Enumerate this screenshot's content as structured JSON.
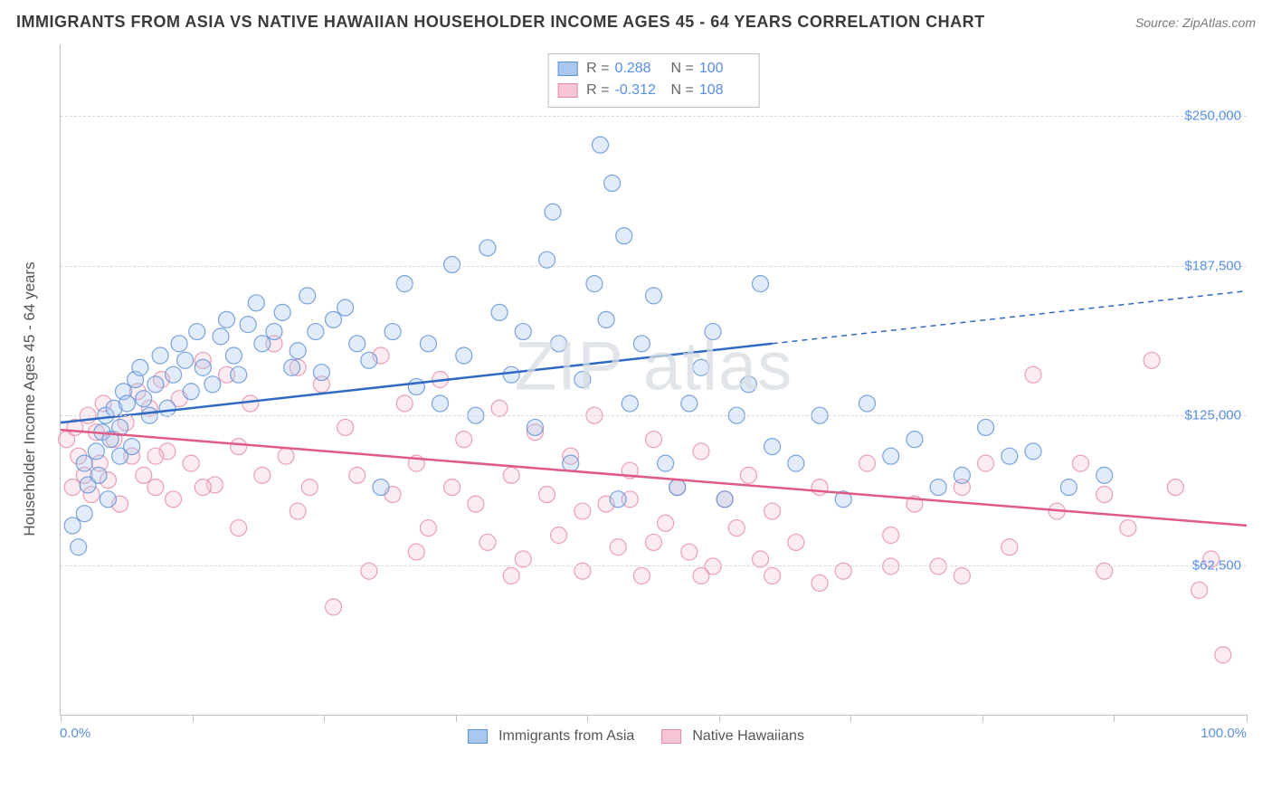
{
  "header": {
    "title": "IMMIGRANTS FROM ASIA VS NATIVE HAWAIIAN HOUSEHOLDER INCOME AGES 45 - 64 YEARS CORRELATION CHART",
    "source": "Source: ZipAtlas.com"
  },
  "watermark": "ZIP atlas",
  "chart": {
    "type": "scatter",
    "y_axis": {
      "title": "Householder Income Ages 45 - 64 years",
      "min": 0,
      "max": 280000,
      "ticks": [
        62500,
        125000,
        187500,
        250000
      ],
      "tick_labels": [
        "$62,500",
        "$125,000",
        "$187,500",
        "$250,000"
      ],
      "tick_color": "#5a8fe6",
      "grid_color": "#d9d9d9"
    },
    "x_axis": {
      "min": 0,
      "max": 100,
      "ticks": [
        0,
        11.1,
        22.2,
        33.3,
        44.4,
        55.5,
        66.6,
        77.7,
        88.8,
        100
      ],
      "label_left": "0.0%",
      "label_right": "100.0%",
      "label_color": "#5a8fe6"
    },
    "marker": {
      "radius": 9,
      "fill_opacity": 0.35,
      "stroke_opacity": 0.8,
      "stroke_width": 1.2
    },
    "series": [
      {
        "id": "asia",
        "label": "Immigrants from Asia",
        "color_fill": "#a9c7ef",
        "color_stroke": "#5b8fd6",
        "color_line": "#2f69c4",
        "R": "0.288",
        "N": "100",
        "trend": {
          "y_at_x0": 122000,
          "y_at_x100": 177000,
          "solid_until_x": 60
        },
        "points": [
          [
            1,
            79000
          ],
          [
            1.5,
            70000
          ],
          [
            2,
            84000
          ],
          [
            2,
            105000
          ],
          [
            2.3,
            96000
          ],
          [
            3,
            110000
          ],
          [
            3.2,
            100000
          ],
          [
            3.5,
            118000
          ],
          [
            3.8,
            125000
          ],
          [
            4,
            90000
          ],
          [
            4.2,
            115000
          ],
          [
            4.5,
            128000
          ],
          [
            5,
            120000
          ],
          [
            5,
            108000
          ],
          [
            5.3,
            135000
          ],
          [
            5.6,
            130000
          ],
          [
            6,
            112000
          ],
          [
            6.3,
            140000
          ],
          [
            6.7,
            145000
          ],
          [
            7,
            132000
          ],
          [
            7.5,
            125000
          ],
          [
            8,
            138000
          ],
          [
            8.4,
            150000
          ],
          [
            9,
            128000
          ],
          [
            9.5,
            142000
          ],
          [
            10,
            155000
          ],
          [
            10.5,
            148000
          ],
          [
            11,
            135000
          ],
          [
            11.5,
            160000
          ],
          [
            12,
            145000
          ],
          [
            12.8,
            138000
          ],
          [
            13.5,
            158000
          ],
          [
            14,
            165000
          ],
          [
            14.6,
            150000
          ],
          [
            15,
            142000
          ],
          [
            15.8,
            163000
          ],
          [
            16.5,
            172000
          ],
          [
            17,
            155000
          ],
          [
            18,
            160000
          ],
          [
            18.7,
            168000
          ],
          [
            19.5,
            145000
          ],
          [
            20,
            152000
          ],
          [
            20.8,
            175000
          ],
          [
            21.5,
            160000
          ],
          [
            22,
            143000
          ],
          [
            23,
            165000
          ],
          [
            24,
            170000
          ],
          [
            25,
            155000
          ],
          [
            26,
            148000
          ],
          [
            27,
            95000
          ],
          [
            28,
            160000
          ],
          [
            29,
            180000
          ],
          [
            30,
            137000
          ],
          [
            31,
            155000
          ],
          [
            32,
            130000
          ],
          [
            33,
            188000
          ],
          [
            34,
            150000
          ],
          [
            35,
            125000
          ],
          [
            36,
            195000
          ],
          [
            37,
            168000
          ],
          [
            38,
            142000
          ],
          [
            39,
            160000
          ],
          [
            40,
            120000
          ],
          [
            41,
            190000
          ],
          [
            41.5,
            210000
          ],
          [
            42,
            155000
          ],
          [
            43,
            105000
          ],
          [
            44,
            140000
          ],
          [
            45,
            180000
          ],
          [
            45.5,
            238000
          ],
          [
            46,
            165000
          ],
          [
            46.5,
            222000
          ],
          [
            47,
            90000
          ],
          [
            47.5,
            200000
          ],
          [
            48,
            130000
          ],
          [
            49,
            155000
          ],
          [
            50,
            175000
          ],
          [
            51,
            105000
          ],
          [
            52,
            95000
          ],
          [
            53,
            130000
          ],
          [
            54,
            145000
          ],
          [
            55,
            160000
          ],
          [
            56,
            90000
          ],
          [
            57,
            125000
          ],
          [
            58,
            138000
          ],
          [
            59,
            180000
          ],
          [
            60,
            112000
          ],
          [
            62,
            105000
          ],
          [
            64,
            125000
          ],
          [
            66,
            90000
          ],
          [
            68,
            130000
          ],
          [
            70,
            108000
          ],
          [
            72,
            115000
          ],
          [
            74,
            95000
          ],
          [
            76,
            100000
          ],
          [
            78,
            120000
          ],
          [
            80,
            108000
          ],
          [
            82,
            110000
          ],
          [
            85,
            95000
          ],
          [
            88,
            100000
          ]
        ]
      },
      {
        "id": "hawaiian",
        "label": "Native Hawaiians",
        "color_fill": "#f5c5d3",
        "color_stroke": "#e58aa5",
        "color_line": "#e05a85",
        "R": "-0.312",
        "N": "108",
        "trend": {
          "y_at_x0": 119000,
          "y_at_x100": 79000,
          "solid_until_x": 100
        },
        "points": [
          [
            0.5,
            115000
          ],
          [
            1,
            95000
          ],
          [
            1.2,
            120000
          ],
          [
            1.5,
            108000
          ],
          [
            2,
            100000
          ],
          [
            2.3,
            125000
          ],
          [
            2.6,
            92000
          ],
          [
            3,
            118000
          ],
          [
            3.3,
            105000
          ],
          [
            3.6,
            130000
          ],
          [
            4,
            98000
          ],
          [
            4.5,
            115000
          ],
          [
            5,
            88000
          ],
          [
            5.5,
            122000
          ],
          [
            6,
            108000
          ],
          [
            6.5,
            135000
          ],
          [
            7,
            100000
          ],
          [
            7.5,
            128000
          ],
          [
            8,
            95000
          ],
          [
            8.5,
            140000
          ],
          [
            9,
            110000
          ],
          [
            9.5,
            90000
          ],
          [
            10,
            132000
          ],
          [
            11,
            105000
          ],
          [
            12,
            148000
          ],
          [
            13,
            96000
          ],
          [
            14,
            142000
          ],
          [
            15,
            112000
          ],
          [
            16,
            130000
          ],
          [
            17,
            100000
          ],
          [
            18,
            155000
          ],
          [
            19,
            108000
          ],
          [
            20,
            145000
          ],
          [
            21,
            95000
          ],
          [
            22,
            138000
          ],
          [
            23,
            45000
          ],
          [
            24,
            120000
          ],
          [
            25,
            100000
          ],
          [
            26,
            60000
          ],
          [
            27,
            150000
          ],
          [
            28,
            92000
          ],
          [
            29,
            130000
          ],
          [
            30,
            105000
          ],
          [
            31,
            78000
          ],
          [
            32,
            140000
          ],
          [
            33,
            95000
          ],
          [
            34,
            115000
          ],
          [
            35,
            88000
          ],
          [
            36,
            72000
          ],
          [
            37,
            128000
          ],
          [
            38,
            100000
          ],
          [
            39,
            65000
          ],
          [
            40,
            118000
          ],
          [
            41,
            92000
          ],
          [
            42,
            75000
          ],
          [
            43,
            108000
          ],
          [
            44,
            60000
          ],
          [
            45,
            125000
          ],
          [
            46,
            88000
          ],
          [
            47,
            70000
          ],
          [
            48,
            102000
          ],
          [
            49,
            58000
          ],
          [
            50,
            115000
          ],
          [
            51,
            80000
          ],
          [
            52,
            95000
          ],
          [
            53,
            68000
          ],
          [
            54,
            110000
          ],
          [
            55,
            62000
          ],
          [
            56,
            90000
          ],
          [
            57,
            78000
          ],
          [
            58,
            100000
          ],
          [
            59,
            65000
          ],
          [
            60,
            85000
          ],
          [
            62,
            72000
          ],
          [
            64,
            95000
          ],
          [
            66,
            60000
          ],
          [
            68,
            105000
          ],
          [
            70,
            75000
          ],
          [
            72,
            88000
          ],
          [
            74,
            62000
          ],
          [
            76,
            95000
          ],
          [
            78,
            105000
          ],
          [
            80,
            70000
          ],
          [
            82,
            142000
          ],
          [
            84,
            85000
          ],
          [
            86,
            105000
          ],
          [
            88,
            60000
          ],
          [
            90,
            78000
          ],
          [
            92,
            148000
          ],
          [
            94,
            95000
          ],
          [
            96,
            52000
          ],
          [
            97,
            65000
          ],
          [
            98,
            25000
          ],
          [
            60,
            58000
          ],
          [
            64,
            55000
          ],
          [
            50,
            72000
          ],
          [
            38,
            58000
          ],
          [
            30,
            68000
          ],
          [
            20,
            85000
          ],
          [
            15,
            78000
          ],
          [
            12,
            95000
          ],
          [
            8,
            108000
          ],
          [
            44,
            85000
          ],
          [
            48,
            90000
          ],
          [
            54,
            58000
          ],
          [
            70,
            62000
          ],
          [
            76,
            58000
          ],
          [
            88,
            92000
          ]
        ]
      }
    ]
  }
}
